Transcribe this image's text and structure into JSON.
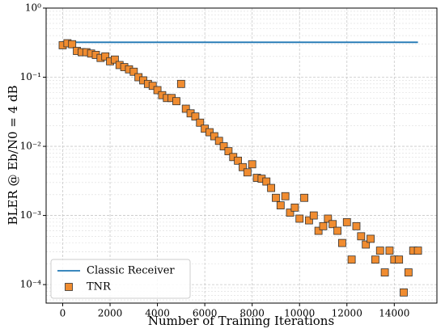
{
  "chart_data": {
    "type": "scatter",
    "xlabel": "Number of Training Iterations",
    "ylabel": "BLER @ Eb/N0 = 4 dB",
    "xlim": [
      -700,
      15800
    ],
    "ylim": [
      5.4e-05,
      1
    ],
    "log_y": true,
    "grid": true,
    "legend": "lower left",
    "xticks": [
      0,
      2000,
      4000,
      6000,
      8000,
      10000,
      12000,
      14000
    ],
    "yticks": [
      {
        "value": 1,
        "label": "10⁰"
      },
      {
        "value": 0.1,
        "label": "10⁻¹"
      },
      {
        "value": 0.01,
        "label": "10⁻²"
      },
      {
        "value": 0.001,
        "label": "10⁻³"
      },
      {
        "value": 0.0001,
        "label": "10⁻⁴"
      }
    ],
    "series": [
      {
        "name": "Classic Receiver",
        "kind": "line",
        "color": "#1f77b4",
        "x": [
          0,
          15000
        ],
        "values": [
          0.32,
          0.32
        ]
      },
      {
        "name": "TNR",
        "kind": "marker",
        "color": "#f08c30",
        "x": [
          0,
          200,
          400,
          600,
          800,
          1000,
          1200,
          1400,
          1600,
          1800,
          2000,
          2200,
          2400,
          2600,
          2800,
          3000,
          3200,
          3400,
          3600,
          3800,
          4000,
          4200,
          4400,
          4600,
          4800,
          5000,
          5200,
          5400,
          5600,
          5800,
          6000,
          6200,
          6400,
          6600,
          6800,
          7000,
          7200,
          7400,
          7600,
          7800,
          8000,
          8200,
          8400,
          8600,
          8800,
          9000,
          9200,
          9400,
          9600,
          9800,
          10000,
          10200,
          10400,
          10600,
          10800,
          11000,
          11200,
          11400,
          11600,
          11800,
          12000,
          12200,
          12400,
          12600,
          12800,
          13000,
          13200,
          13400,
          13600,
          13800,
          14000,
          14200,
          14400,
          14600,
          14800,
          15000
        ],
        "values": [
          0.29,
          0.31,
          0.3,
          0.24,
          0.23,
          0.23,
          0.22,
          0.21,
          0.19,
          0.2,
          0.17,
          0.18,
          0.15,
          0.14,
          0.13,
          0.12,
          0.1,
          0.09,
          0.08,
          0.075,
          0.065,
          0.055,
          0.05,
          0.05,
          0.045,
          0.08,
          0.035,
          0.03,
          0.027,
          0.022,
          0.018,
          0.016,
          0.014,
          0.012,
          0.01,
          0.0085,
          0.007,
          0.0062,
          0.005,
          0.0042,
          0.0055,
          0.0035,
          0.0034,
          0.0031,
          0.0025,
          0.0018,
          0.0014,
          0.0019,
          0.0011,
          0.0013,
          0.0009,
          0.0018,
          0.00085,
          0.001,
          0.0006,
          0.0007,
          0.0009,
          0.00075,
          0.0006,
          0.0004,
          0.0008,
          0.00023,
          0.0007,
          0.0005,
          0.00038,
          0.00046,
          0.00023,
          0.00031,
          0.00015,
          0.00031,
          0.00023,
          0.00023,
          7.7e-05,
          0.00015,
          0.00031,
          0.00031
        ]
      }
    ]
  }
}
